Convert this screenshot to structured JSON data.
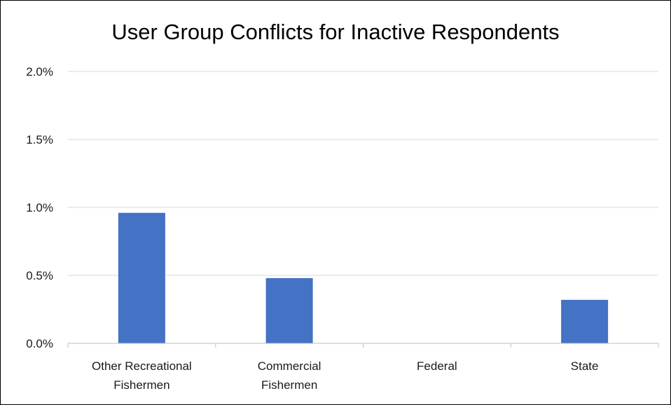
{
  "chart_data": {
    "type": "bar",
    "title": "User Group Conflicts for Inactive Respondents",
    "categories": [
      [
        "Other Recreational",
        "Fishermen"
      ],
      [
        "Commercial",
        "Fishermen"
      ],
      [
        "Federal"
      ],
      [
        "State"
      ]
    ],
    "values": [
      0.96,
      0.48,
      0,
      0.32
    ],
    "value_unit": "percent",
    "ylim": [
      0,
      2.0
    ],
    "yticks": [
      "0.0%",
      "0.5%",
      "1.0%",
      "1.5%",
      "2.0%"
    ],
    "ytick_values": [
      0,
      0.5,
      1.0,
      1.5,
      2.0
    ],
    "grid": true,
    "legend": "none",
    "colors": {
      "bar": "#4472C4",
      "grid": "#D9D9D9",
      "axis": "#BFBFBF"
    }
  }
}
